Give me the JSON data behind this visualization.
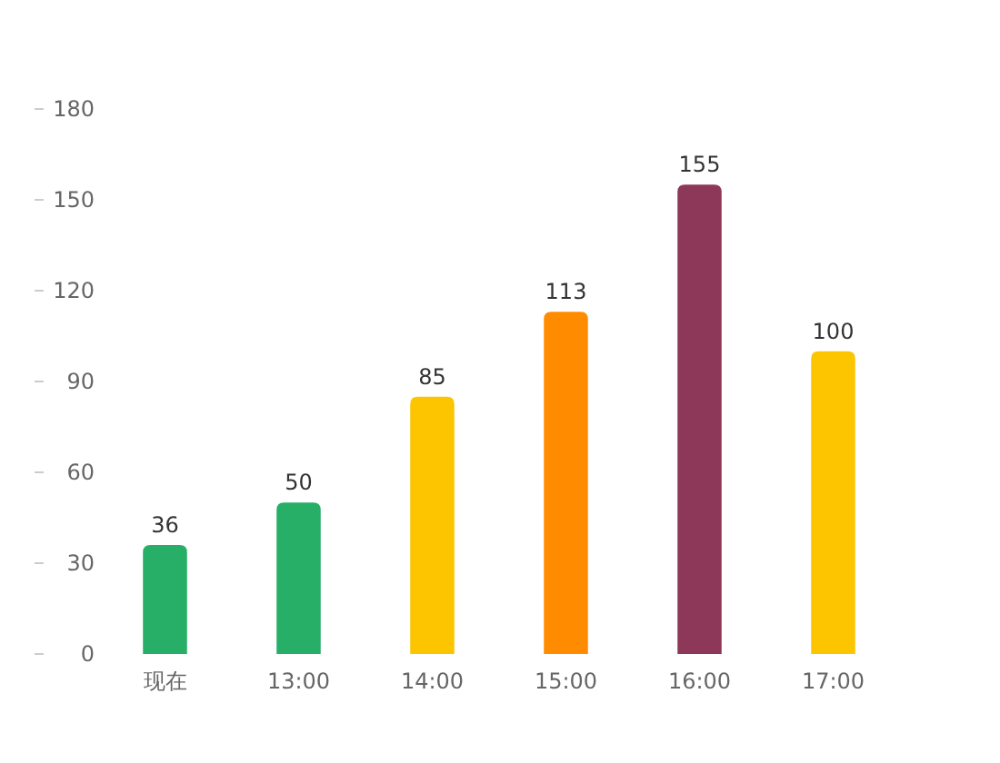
{
  "chart_data": {
    "type": "bar",
    "categories": [
      "现在",
      "13:00",
      "14:00",
      "15:00",
      "16:00",
      "17:00"
    ],
    "values": [
      36,
      50,
      85,
      113,
      155,
      100
    ],
    "colors": [
      "#27ae67",
      "#27ae67",
      "#fcc500",
      "#ff8c00",
      "#8e3859",
      "#fcc500"
    ],
    "ylim": [
      0,
      180
    ],
    "yticks": [
      0,
      30,
      60,
      90,
      120,
      150,
      180
    ],
    "data_labels": true,
    "grid": false
  }
}
